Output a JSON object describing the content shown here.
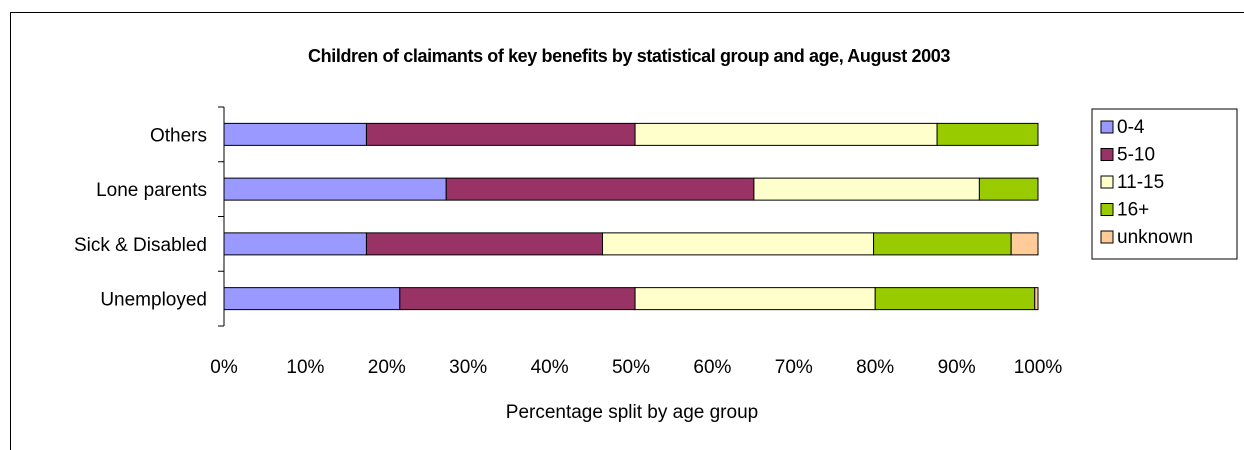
{
  "chart_data": {
    "type": "bar",
    "orientation": "horizontal",
    "stacked": "percent",
    "title": "Children of claimants of key benefits by statistical group and age, August 2003",
    "xlabel": "Percentage split by age group",
    "ylabel": "",
    "categories": [
      "Others",
      "Lone parents",
      "Sick & Disabled",
      "Unemployed"
    ],
    "xlim": [
      0,
      100
    ],
    "x_ticks": [
      "0%",
      "10%",
      "20%",
      "30%",
      "40%",
      "50%",
      "60%",
      "70%",
      "80%",
      "90%",
      "100%"
    ],
    "grid": false,
    "legend_position": "right",
    "series": [
      {
        "name": "0-4",
        "color": "#9999FF",
        "values": [
          17.5,
          27.3,
          17.5,
          21.6
        ]
      },
      {
        "name": "5-10",
        "color": "#993366",
        "values": [
          33.0,
          37.8,
          29.0,
          28.9
        ]
      },
      {
        "name": "11-15",
        "color": "#FFFFCC",
        "values": [
          37.1,
          27.7,
          33.3,
          29.5
        ]
      },
      {
        "name": "16+",
        "color": "#99CC00",
        "values": [
          12.4,
          7.2,
          16.9,
          19.6
        ]
      },
      {
        "name": "unknown",
        "color": "#FFCC99",
        "values": [
          0,
          0,
          3.3,
          0.4
        ]
      }
    ]
  }
}
